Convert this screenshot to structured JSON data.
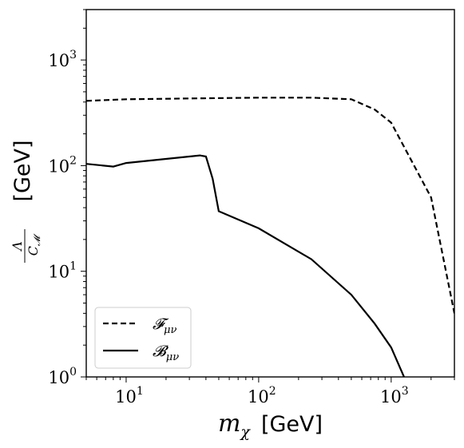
{
  "chart_data": {
    "type": "line",
    "xlabel": {
      "var": "m",
      "sub": "χ",
      "unit": "[GeV]"
    },
    "ylabel": {
      "num": "Λ",
      "den": "C",
      "den_sub": "𝓜",
      "unit": "[GeV]"
    },
    "x_scale": "log",
    "y_scale": "log",
    "xlim": [
      5,
      3000
    ],
    "ylim": [
      1,
      3000
    ],
    "grid": false,
    "legend_position": "lower-left",
    "x_ticks": [
      {
        "value": 10,
        "base": "10",
        "exp": "1"
      },
      {
        "value": 100,
        "base": "10",
        "exp": "2"
      },
      {
        "value": 1000,
        "base": "10",
        "exp": "3"
      }
    ],
    "y_ticks": [
      {
        "value": 1,
        "base": "10",
        "exp": "0"
      },
      {
        "value": 10,
        "base": "10",
        "exp": "1"
      },
      {
        "value": 100,
        "base": "10",
        "exp": "2"
      },
      {
        "value": 1000,
        "base": "10",
        "exp": "3"
      }
    ],
    "series": [
      {
        "name": "𝓕",
        "name_sub": "μν",
        "style": "dashed",
        "x": [
          5,
          10,
          30,
          100,
          250,
          500,
          750,
          1000,
          2000,
          3000
        ],
        "y": [
          410,
          425,
          432,
          440,
          440,
          425,
          340,
          255,
          50,
          4
        ]
      },
      {
        "name": "𝓑",
        "name_sub": "μν",
        "style": "solid",
        "x": [
          5,
          8,
          10,
          36,
          40,
          45,
          50,
          100,
          250,
          500,
          750,
          1000,
          1250
        ],
        "y": [
          104,
          98,
          106,
          125,
          122,
          75,
          37,
          25.5,
          13,
          6,
          3.2,
          1.9,
          1.0
        ]
      }
    ]
  }
}
